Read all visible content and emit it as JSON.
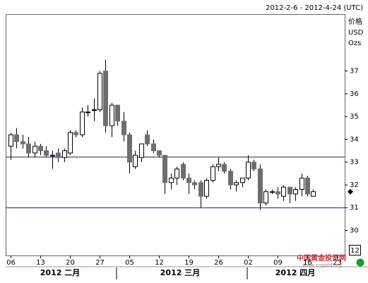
{
  "chart_data": {
    "type": "candlestick",
    "header": "2012-2-6 - 2012-4-24 (UTC)",
    "axis_label_lines": [
      "价格",
      "USD",
      "Ozs"
    ],
    "axis_button": "12",
    "month_labels": [
      "2012 二月",
      "2012 三月",
      "2012 四月"
    ],
    "watermark": "中国黄金投资网",
    "watermark_url": "www.cngold.org",
    "categories": [
      "06",
      null,
      null,
      null,
      null,
      "13",
      null,
      null,
      null,
      null,
      "20",
      null,
      null,
      null,
      null,
      "27",
      null,
      null,
      null,
      null,
      "05",
      null,
      null,
      null,
      null,
      "12",
      null,
      null,
      null,
      null,
      "19",
      null,
      null,
      null,
      null,
      "26",
      null,
      null,
      null,
      null,
      "02",
      null,
      null,
      null,
      null,
      "09",
      null,
      null,
      null,
      null,
      "16",
      null,
      null,
      null,
      null,
      "23",
      null
    ],
    "open": [
      33.7,
      34.2,
      33.9,
      33.8,
      33.4,
      33.7,
      33.5,
      33.3,
      33.4,
      33.2,
      33.4,
      34.3,
      34.2,
      35.2,
      35.3,
      35.3,
      37.0,
      34.6,
      35.5,
      34.8,
      34.2,
      32.8,
      33.2,
      34.2,
      33.8,
      33.5,
      33.3,
      32.1,
      32.3,
      32.9,
      32.3,
      32.1,
      32.1,
      31.5,
      32.2,
      32.8,
      32.9,
      32.6,
      32.0,
      32.1,
      32.3,
      33.0,
      32.7,
      31.2,
      31.7,
      31.7,
      31.5,
      31.9,
      31.6,
      31.8,
      32.3,
      31.5,
      null,
      null,
      null,
      null,
      null
    ],
    "high": [
      34.3,
      34.5,
      34.2,
      34.1,
      33.9,
      33.8,
      33.7,
      33.5,
      33.6,
      33.6,
      34.4,
      34.4,
      35.4,
      35.5,
      35.8,
      37.0,
      37.5,
      35.6,
      35.5,
      35.2,
      34.3,
      33.5,
      33.8,
      34.4,
      34.0,
      33.5,
      33.3,
      32.5,
      32.8,
      33.0,
      32.5,
      32.2,
      32.2,
      32.3,
      32.9,
      33.2,
      33.0,
      32.7,
      32.2,
      32.3,
      33.3,
      33.1,
      32.9,
      31.8,
      31.8,
      31.9,
      32.0,
      31.9,
      31.9,
      32.5,
      32.4,
      31.8,
      null,
      null,
      null,
      null,
      null
    ],
    "low": [
      33.1,
      33.6,
      33.6,
      33.2,
      33.2,
      33.3,
      33.2,
      32.7,
      33.0,
      33.0,
      33.3,
      34.1,
      34.1,
      35.0,
      34.8,
      35.2,
      34.3,
      34.1,
      34.6,
      33.9,
      32.5,
      32.7,
      33.0,
      33.7,
      33.4,
      33.2,
      31.6,
      31.8,
      32.0,
      32.2,
      31.6,
      31.8,
      31.0,
      31.4,
      32.1,
      32.6,
      32.5,
      31.8,
      31.7,
      31.9,
      32.2,
      32.6,
      30.9,
      31.1,
      31.6,
      31.4,
      31.3,
      31.2,
      31.3,
      31.5,
      31.5,
      31.5,
      null,
      null,
      null,
      null,
      null
    ],
    "close": [
      34.2,
      33.9,
      33.8,
      33.4,
      33.7,
      33.5,
      33.3,
      33.3,
      33.2,
      33.5,
      34.3,
      34.2,
      35.2,
      35.2,
      35.3,
      36.9,
      34.6,
      35.5,
      34.8,
      34.2,
      33.0,
      33.3,
      33.8,
      33.8,
      33.5,
      33.3,
      32.1,
      32.3,
      32.7,
      32.3,
      32.1,
      32.0,
      31.5,
      32.2,
      32.8,
      32.9,
      32.6,
      32.0,
      32.1,
      32.3,
      33.0,
      32.7,
      31.2,
      31.7,
      31.7,
      31.6,
      31.9,
      31.6,
      31.8,
      32.3,
      31.6,
      31.7,
      null,
      null,
      null,
      null,
      null
    ],
    "up_color": "#ffffff",
    "down_color": "#6e6e6e",
    "reference_lines": [
      33.25,
      31.0
    ],
    "last_price": 31.7,
    "ylim": [
      28.9,
      39.5
    ],
    "yticks": [
      30,
      31,
      32,
      33,
      34,
      35,
      36,
      37
    ]
  }
}
